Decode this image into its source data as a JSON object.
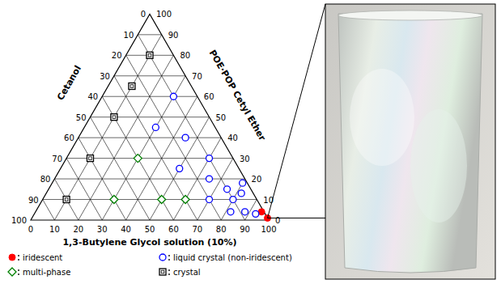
{
  "chart_data": {
    "type": "ternary",
    "grid": true,
    "legend": "bottom",
    "axes": [
      {
        "label": "Cetanol",
        "lim": [
          0,
          100
        ],
        "ticks": [
          0,
          10,
          20,
          30,
          40,
          50,
          60,
          70,
          80,
          90,
          100
        ]
      },
      {
        "label": "POE·POP Cetyl Ether",
        "lim": [
          0,
          100
        ],
        "ticks": [
          0,
          10,
          20,
          30,
          40,
          50,
          60,
          70,
          80,
          90,
          100
        ]
      },
      {
        "label": "1,3-Butylene Glycol solution (10%)",
        "lim": [
          0,
          100
        ],
        "ticks": [
          0,
          10,
          20,
          30,
          40,
          50,
          60,
          70,
          80,
          90,
          100
        ]
      }
    ],
    "series": [
      {
        "name": "iridescent",
        "color": "#ff0000",
        "marker": "filled-circle",
        "cetanol": [
          1,
          0
        ],
        "poe_pop": [
          4,
          1
        ],
        "bg": [
          95,
          99
        ]
      },
      {
        "name": "liquid crystal (non-iridescent)",
        "color": "#0000ff",
        "marker": "open-circle",
        "cetanol": [
          10,
          25,
          15,
          25,
          10,
          15,
          10,
          20,
          10,
          5,
          2,
          14,
          8,
          4
        ],
        "poe_pop": [
          60,
          45,
          40,
          25,
          30,
          20,
          15,
          10,
          10,
          13,
          18,
          4,
          4,
          3
        ],
        "bg": [
          30,
          30,
          45,
          50,
          60,
          65,
          75,
          70,
          80,
          82,
          80,
          82,
          88,
          93
        ]
      },
      {
        "name": "multi-phase",
        "color": "#008000",
        "marker": "open-diamond",
        "cetanol": [
          40,
          60,
          40,
          30
        ],
        "poe_pop": [
          30,
          10,
          10,
          10
        ],
        "bg": [
          30,
          30,
          50,
          60
        ]
      },
      {
        "name": "crystal",
        "color": "#000000",
        "marker": "open-square",
        "cetanol": [
          10,
          25,
          40,
          60,
          80
        ],
        "poe_pop": [
          80,
          65,
          50,
          30,
          10
        ],
        "bg": [
          10,
          10,
          10,
          10,
          10
        ]
      }
    ]
  }
}
